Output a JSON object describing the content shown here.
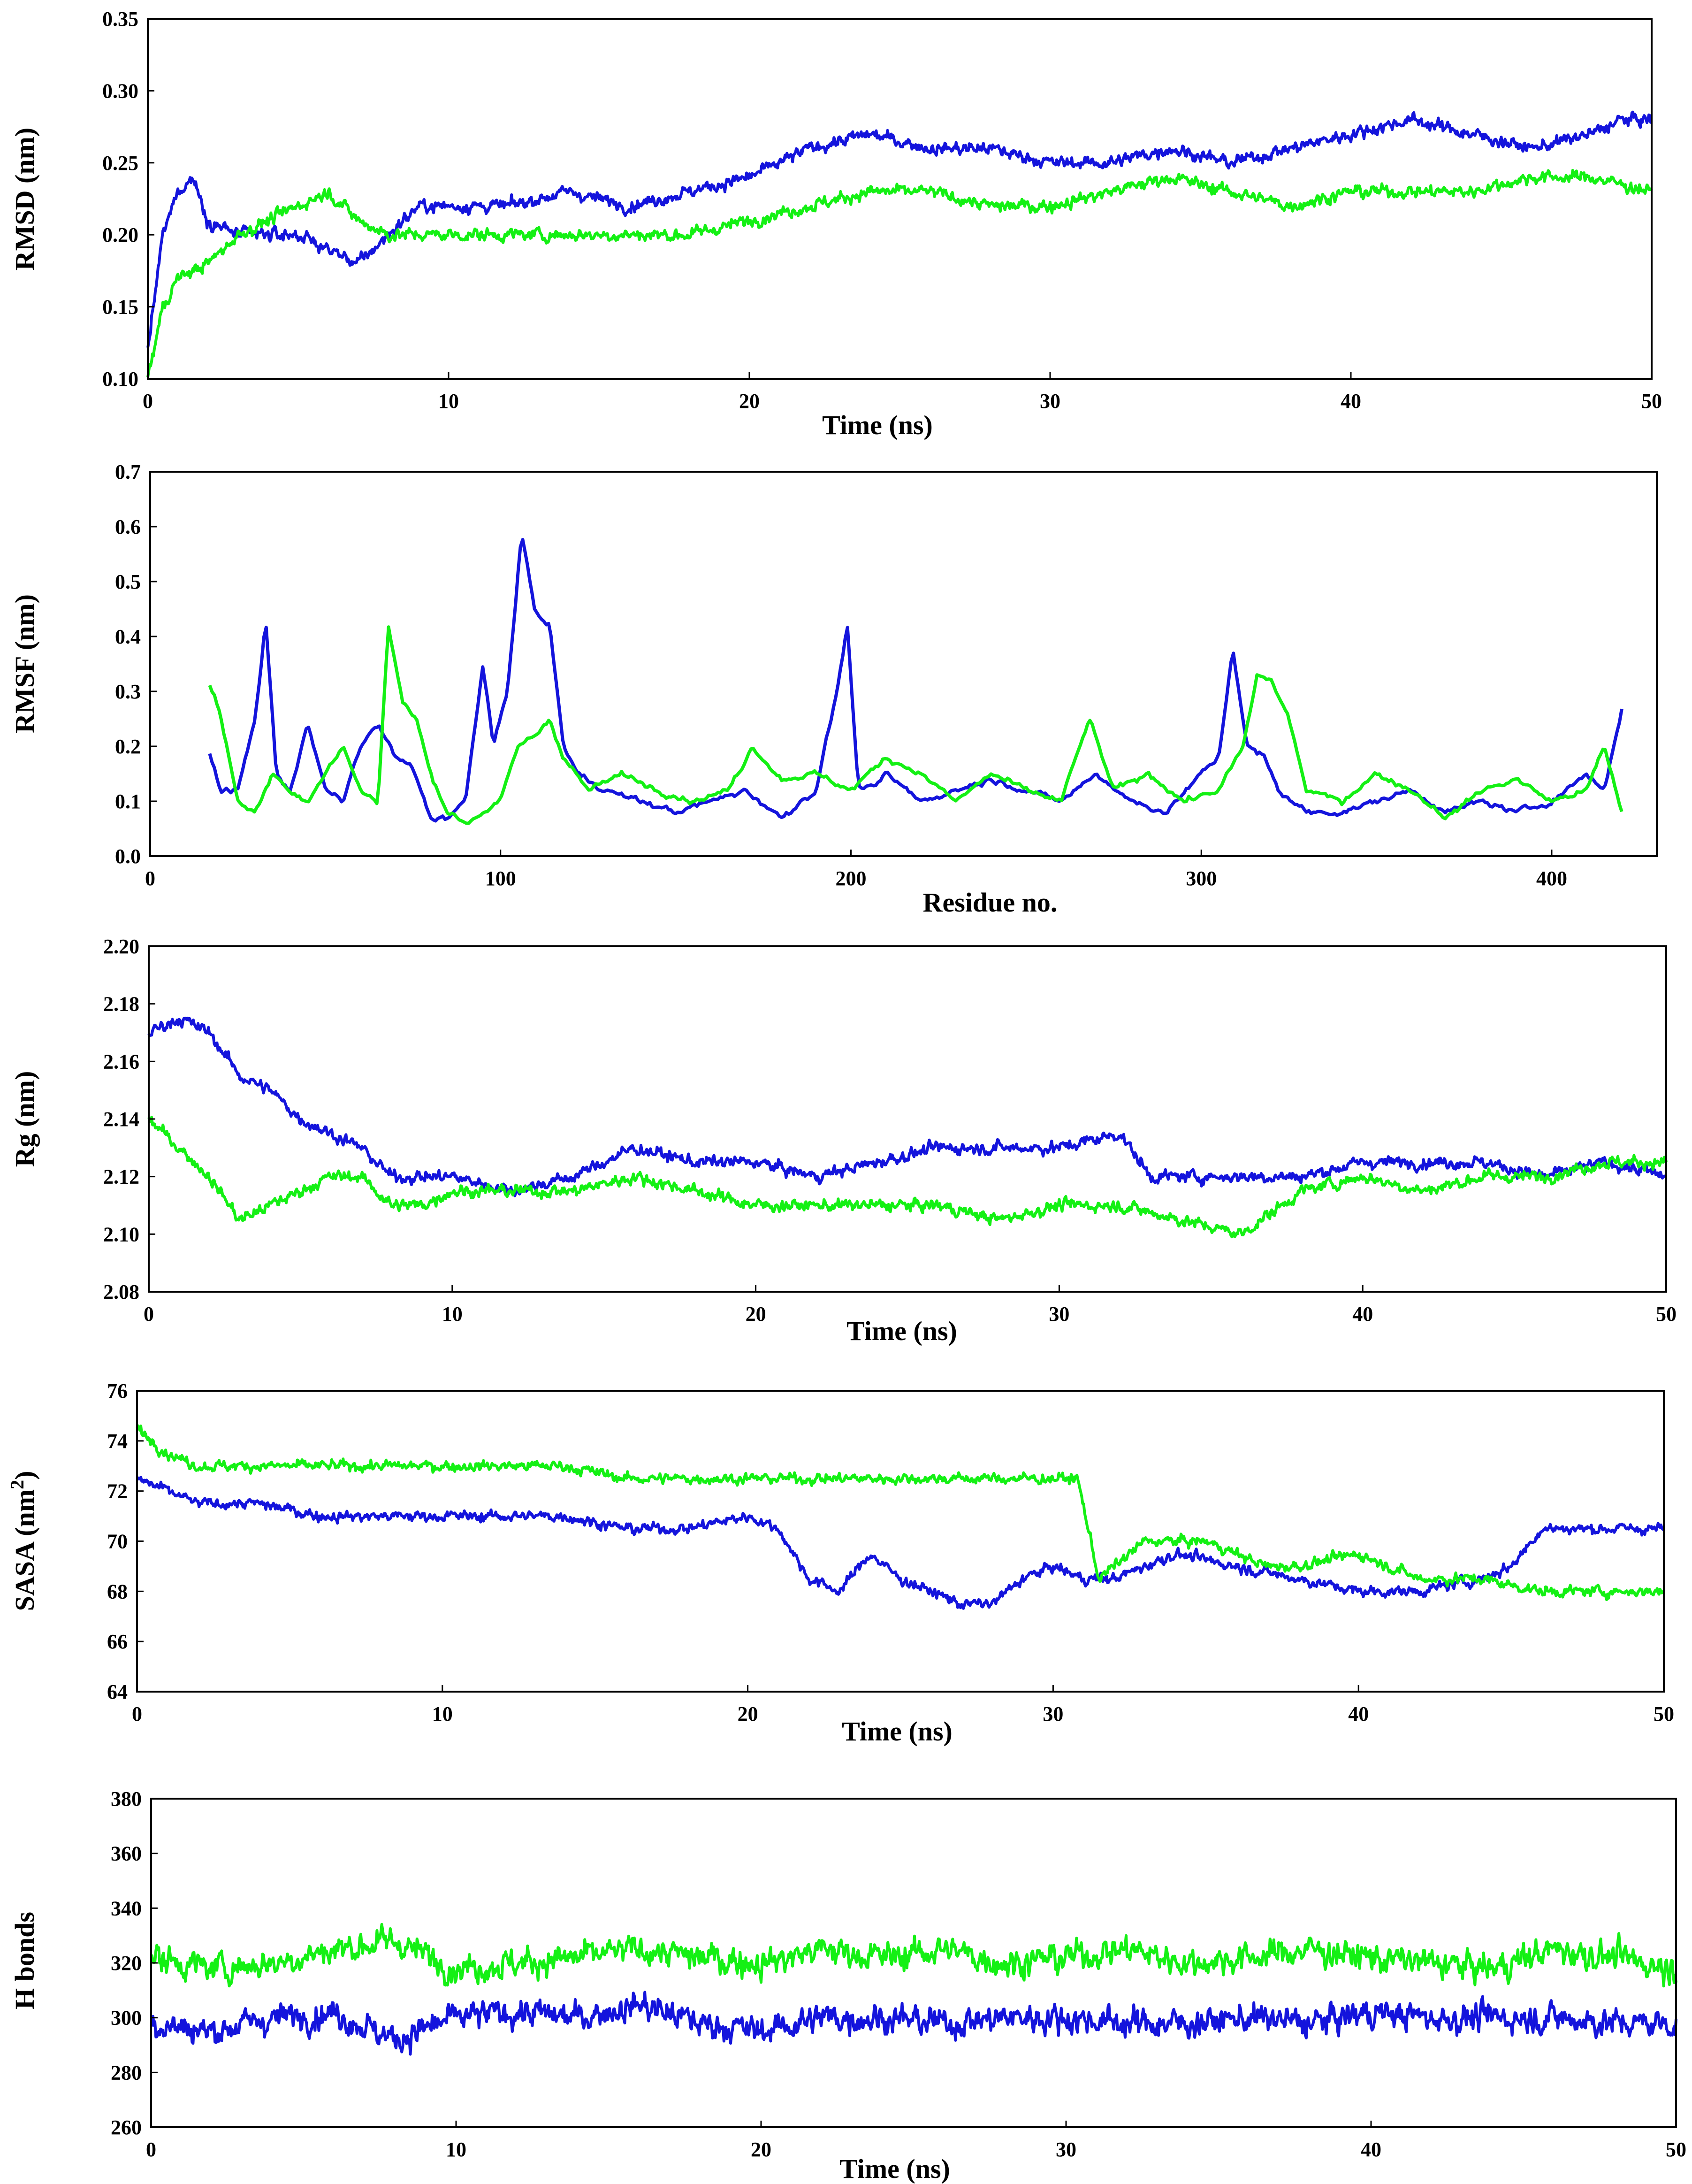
{
  "colors": {
    "series_1": "#1414dc",
    "series_2": "#14f014",
    "frame": "#000000",
    "background": "#ffffff"
  },
  "chart_data": [
    {
      "type": "line",
      "panel": "rmsd",
      "title": "",
      "xlabel": "Time (ns)",
      "ylabel": "RMSD (nm)",
      "xlim": [
        0,
        50
      ],
      "ylim": [
        0.1,
        0.35
      ],
      "x_ticks": [
        0,
        10,
        20,
        30,
        40,
        50
      ],
      "y_ticks": [
        0.1,
        0.15,
        0.2,
        0.25,
        0.3,
        0.35
      ],
      "x_tick_labels": [
        "0",
        "10",
        "20",
        "30",
        "40",
        "50"
      ],
      "y_tick_labels": [
        "0.10",
        "0.15",
        "0.20",
        "0.25",
        "0.30",
        "0.35"
      ],
      "grid": false,
      "legend": "none",
      "series": [
        {
          "name": "blue",
          "color": "#1414dc",
          "x": [
            0,
            0.5,
            1,
            1.5,
            2,
            3,
            4,
            5,
            6,
            7,
            8,
            9,
            10,
            12,
            14,
            16,
            18,
            20,
            22,
            24,
            26,
            28,
            30,
            32,
            34,
            36,
            38,
            40,
            42,
            44,
            46,
            48,
            49,
            50
          ],
          "y": [
            0.12,
            0.2,
            0.23,
            0.24,
            0.21,
            0.2,
            0.2,
            0.2,
            0.19,
            0.18,
            0.2,
            0.22,
            0.22,
            0.22,
            0.23,
            0.22,
            0.23,
            0.24,
            0.26,
            0.27,
            0.26,
            0.26,
            0.25,
            0.25,
            0.26,
            0.25,
            0.26,
            0.27,
            0.28,
            0.27,
            0.26,
            0.27,
            0.28,
            0.28
          ]
        },
        {
          "name": "green",
          "color": "#14f014",
          "x": [
            0,
            0.5,
            1,
            2,
            3,
            4,
            5,
            6,
            7,
            8,
            10,
            12,
            14,
            16,
            18,
            20,
            22,
            24,
            26,
            28,
            30,
            32,
            34,
            36,
            38,
            40,
            42,
            44,
            46,
            48,
            50
          ],
          "y": [
            0.1,
            0.15,
            0.17,
            0.18,
            0.2,
            0.21,
            0.22,
            0.23,
            0.21,
            0.2,
            0.2,
            0.2,
            0.2,
            0.2,
            0.2,
            0.21,
            0.22,
            0.23,
            0.23,
            0.22,
            0.22,
            0.23,
            0.24,
            0.23,
            0.22,
            0.23,
            0.23,
            0.23,
            0.24,
            0.24,
            0.23
          ]
        }
      ]
    },
    {
      "type": "line",
      "panel": "rmsf",
      "title": "",
      "xlabel": "Residue no.",
      "ylabel": "RMSF (nm)",
      "xlim": [
        0,
        430
      ],
      "ylim": [
        0.0,
        0.7
      ],
      "x_ticks": [
        0,
        100,
        200,
        300,
        400
      ],
      "y_ticks": [
        0.0,
        0.1,
        0.2,
        0.3,
        0.4,
        0.5,
        0.6,
        0.7
      ],
      "x_tick_labels": [
        "0",
        "100",
        "200",
        "300",
        "400"
      ],
      "y_tick_labels": [
        "0.0",
        "0.1",
        "0.2",
        "0.3",
        "0.4",
        "0.5",
        "0.6",
        "0.7"
      ],
      "grid": false,
      "legend": "none",
      "series": [
        {
          "name": "blue",
          "color": "#1414dc",
          "x": [
            17,
            20,
            25,
            30,
            33,
            36,
            40,
            45,
            50,
            55,
            60,
            65,
            70,
            75,
            80,
            85,
            90,
            95,
            98,
            102,
            106,
            110,
            114,
            118,
            122,
            130,
            140,
            150,
            160,
            170,
            180,
            190,
            196,
            199,
            202,
            206,
            210,
            220,
            230,
            240,
            250,
            260,
            270,
            280,
            290,
            300,
            305,
            309,
            313,
            318,
            322,
            330,
            340,
            350,
            360,
            370,
            380,
            390,
            400,
            410,
            415,
            420
          ],
          "y": [
            0.19,
            0.12,
            0.12,
            0.25,
            0.43,
            0.15,
            0.12,
            0.24,
            0.12,
            0.1,
            0.2,
            0.24,
            0.18,
            0.16,
            0.07,
            0.07,
            0.1,
            0.35,
            0.2,
            0.3,
            0.59,
            0.44,
            0.42,
            0.2,
            0.15,
            0.12,
            0.1,
            0.08,
            0.1,
            0.12,
            0.07,
            0.12,
            0.3,
            0.42,
            0.13,
            0.12,
            0.15,
            0.1,
            0.12,
            0.14,
            0.12,
            0.1,
            0.15,
            0.1,
            0.08,
            0.15,
            0.18,
            0.38,
            0.2,
            0.18,
            0.12,
            0.08,
            0.08,
            0.1,
            0.12,
            0.08,
            0.1,
            0.08,
            0.1,
            0.15,
            0.12,
            0.27
          ]
        },
        {
          "name": "green",
          "color": "#14f014",
          "x": [
            17,
            20,
            25,
            30,
            35,
            40,
            45,
            50,
            55,
            60,
            65,
            68,
            72,
            76,
            80,
            85,
            90,
            95,
            100,
            105,
            110,
            114,
            118,
            125,
            135,
            145,
            155,
            165,
            172,
            180,
            190,
            200,
            210,
            220,
            230,
            240,
            250,
            260,
            268,
            275,
            285,
            295,
            305,
            312,
            316,
            320,
            325,
            330,
            340,
            350,
            360,
            370,
            380,
            390,
            400,
            410,
            415,
            420
          ],
          "y": [
            0.31,
            0.26,
            0.1,
            0.08,
            0.15,
            0.12,
            0.1,
            0.15,
            0.2,
            0.12,
            0.1,
            0.42,
            0.28,
            0.25,
            0.15,
            0.08,
            0.06,
            0.08,
            0.1,
            0.2,
            0.22,
            0.25,
            0.18,
            0.12,
            0.15,
            0.12,
            0.1,
            0.12,
            0.2,
            0.14,
            0.15,
            0.12,
            0.18,
            0.15,
            0.1,
            0.15,
            0.12,
            0.1,
            0.25,
            0.12,
            0.15,
            0.1,
            0.12,
            0.2,
            0.33,
            0.32,
            0.25,
            0.12,
            0.1,
            0.15,
            0.12,
            0.07,
            0.12,
            0.14,
            0.1,
            0.12,
            0.2,
            0.08
          ]
        }
      ]
    },
    {
      "type": "line",
      "panel": "rg",
      "title": "",
      "xlabel": "Time (ns)",
      "ylabel": "Rg (nm)",
      "xlim": [
        0,
        50
      ],
      "ylim": [
        2.08,
        2.2
      ],
      "x_ticks": [
        0,
        10,
        20,
        30,
        40,
        50
      ],
      "y_ticks": [
        2.08,
        2.1,
        2.12,
        2.14,
        2.16,
        2.18,
        2.2
      ],
      "x_tick_labels": [
        "0",
        "10",
        "20",
        "30",
        "40",
        "50"
      ],
      "y_tick_labels": [
        "2.08",
        "2.10",
        "2.12",
        "2.14",
        "2.16",
        "2.18",
        "2.20"
      ],
      "grid": false,
      "legend": "none",
      "series": [
        {
          "name": "blue",
          "color": "#1414dc",
          "x": [
            0,
            1,
            2,
            3,
            4,
            5,
            6,
            7,
            8,
            9,
            10,
            12,
            14,
            16,
            18,
            20,
            22,
            24,
            26,
            28,
            30,
            32,
            33,
            34,
            36,
            38,
            40,
            42,
            44,
            46,
            48,
            50
          ],
          "y": [
            2.17,
            2.175,
            2.17,
            2.155,
            2.15,
            2.14,
            2.135,
            2.13,
            2.12,
            2.12,
            2.12,
            2.115,
            2.12,
            2.13,
            2.125,
            2.125,
            2.12,
            2.125,
            2.13,
            2.13,
            2.13,
            2.135,
            2.12,
            2.12,
            2.12,
            2.12,
            2.125,
            2.125,
            2.125,
            2.12,
            2.125,
            2.12
          ]
        },
        {
          "name": "green",
          "color": "#14f014",
          "x": [
            0,
            1,
            2,
            3,
            4,
            5,
            6,
            7,
            8,
            9,
            10,
            12,
            14,
            16,
            18,
            20,
            22,
            24,
            26,
            28,
            30,
            32,
            34,
            36,
            38,
            40,
            42,
            44,
            46,
            48,
            50
          ],
          "y": [
            2.14,
            2.13,
            2.12,
            2.105,
            2.11,
            2.115,
            2.12,
            2.12,
            2.11,
            2.11,
            2.115,
            2.115,
            2.115,
            2.12,
            2.115,
            2.11,
            2.11,
            2.11,
            2.11,
            2.105,
            2.11,
            2.11,
            2.105,
            2.1,
            2.115,
            2.12,
            2.115,
            2.12,
            2.12,
            2.125,
            2.125
          ]
        }
      ]
    },
    {
      "type": "line",
      "panel": "sasa",
      "title": "",
      "xlabel": "Time (ns)",
      "ylabel": "SASA (nm",
      "ylabel_sup": "2",
      "ylabel_close": ")",
      "xlim": [
        0,
        50
      ],
      "ylim": [
        64,
        76
      ],
      "x_ticks": [
        0,
        10,
        20,
        30,
        40,
        50
      ],
      "y_ticks": [
        64,
        66,
        68,
        70,
        72,
        74,
        76
      ],
      "x_tick_labels": [
        "0",
        "10",
        "20",
        "30",
        "40",
        "50"
      ],
      "y_tick_labels": [
        "64",
        "66",
        "68",
        "70",
        "72",
        "74",
        "76"
      ],
      "grid": false,
      "legend": "none",
      "series": [
        {
          "name": "blue",
          "color": "#1414dc",
          "x": [
            0,
            1,
            2,
            4,
            6,
            8,
            10,
            12,
            14,
            16,
            18,
            20,
            21,
            22,
            23,
            24,
            25,
            26,
            27,
            28,
            29,
            30,
            31,
            32,
            34,
            36,
            38,
            40,
            42,
            44,
            45,
            46,
            48,
            50
          ],
          "y": [
            72.5,
            72,
            71.5,
            71.5,
            71,
            71,
            71,
            71,
            71,
            70.5,
            70.5,
            71,
            70.5,
            68.5,
            68,
            69.5,
            68.5,
            68,
            67.5,
            67.5,
            68.5,
            69,
            68.5,
            68.5,
            69.5,
            69,
            68.5,
            68,
            68,
            68.5,
            69,
            70.5,
            70.5,
            70.5
          ]
        },
        {
          "name": "green",
          "color": "#14f014",
          "x": [
            0,
            1,
            2,
            4,
            6,
            8,
            10,
            12,
            14,
            16,
            18,
            20,
            22,
            24,
            26,
            28,
            30,
            30.8,
            31.5,
            33,
            35,
            37,
            38,
            40,
            42,
            44,
            46,
            48,
            50
          ],
          "y": [
            74.5,
            73.5,
            73,
            73,
            73,
            73,
            73,
            73,
            73,
            72.5,
            72.5,
            72.5,
            72.5,
            72.5,
            72.5,
            72.5,
            72.5,
            72.5,
            68.5,
            70,
            70,
            69,
            69,
            69.5,
            68.5,
            68.5,
            68,
            68,
            68
          ]
        }
      ]
    },
    {
      "type": "line",
      "panel": "hbonds",
      "title": "",
      "xlabel": "Time (ns)",
      "ylabel": "H bonds",
      "xlim": [
        0,
        50
      ],
      "ylim": [
        260,
        380
      ],
      "x_ticks": [
        0,
        10,
        20,
        30,
        40,
        50
      ],
      "y_ticks": [
        260,
        280,
        300,
        320,
        340,
        360,
        380
      ],
      "x_tick_labels": [
        "0",
        "10",
        "20",
        "30",
        "40",
        "50"
      ],
      "y_tick_labels": [
        "260",
        "280",
        "300",
        "320",
        "340",
        "360",
        "380"
      ],
      "grid": false,
      "legend": "none",
      "series": [
        {
          "name": "blue",
          "color": "#1414dc",
          "x": [
            0,
            2,
            4,
            6,
            8,
            10,
            12,
            14,
            16,
            18,
            20,
            22,
            24,
            26,
            28,
            30,
            32,
            34,
            36,
            38,
            40,
            42,
            44,
            46,
            48,
            50
          ],
          "y": [
            298,
            295,
            300,
            302,
            292,
            300,
            302,
            300,
            305,
            298,
            295,
            300,
            300,
            298,
            300,
            300,
            298,
            298,
            300,
            298,
            302,
            300,
            300,
            300,
            298,
            298
          ]
        },
        {
          "name": "green",
          "color": "#14f014",
          "x": [
            0,
            2,
            4,
            6,
            8,
            10,
            12,
            14,
            16,
            18,
            20,
            22,
            24,
            26,
            28,
            30,
            32,
            34,
            36,
            38,
            40,
            42,
            44,
            46,
            48,
            50
          ],
          "y": [
            322,
            318,
            320,
            325,
            328,
            318,
            320,
            322,
            325,
            322,
            320,
            325,
            322,
            325,
            320,
            322,
            325,
            320,
            322,
            325,
            322,
            320,
            318,
            325,
            322,
            318
          ]
        }
      ]
    }
  ]
}
